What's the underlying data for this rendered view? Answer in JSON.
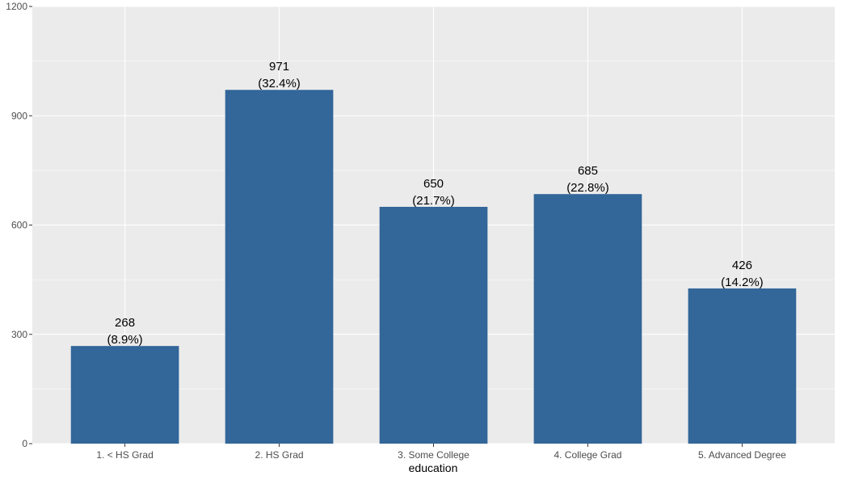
{
  "chart_data": {
    "type": "bar",
    "categories": [
      "1. < HS Grad",
      "2. HS Grad",
      "3. Some College",
      "4. College Grad",
      "5. Advanced Degree"
    ],
    "values": [
      268,
      971,
      650,
      685,
      426
    ],
    "labels": [
      [
        "268",
        "(8.9%)"
      ],
      [
        "971",
        "(32.4%)"
      ],
      [
        "650",
        "(21.7%)"
      ],
      [
        "685",
        "(22.8%)"
      ],
      [
        "426",
        "(14.2%)"
      ]
    ],
    "title": "",
    "xlabel": "education",
    "ylabel": "",
    "ylim": [
      0,
      1200
    ],
    "yticks": [
      0,
      300,
      600,
      900,
      1200
    ],
    "ytick_labels": [
      "0",
      "300",
      "600",
      "900",
      "1200"
    ],
    "grid": true,
    "legend": "none",
    "colors": {
      "bar": "#336699",
      "panel": "#ebebeb",
      "grid_major": "#ffffff",
      "grid_minor": "#f5f5f5",
      "tick_text": "#4d4d4d",
      "tick_mark": "#333333"
    }
  }
}
